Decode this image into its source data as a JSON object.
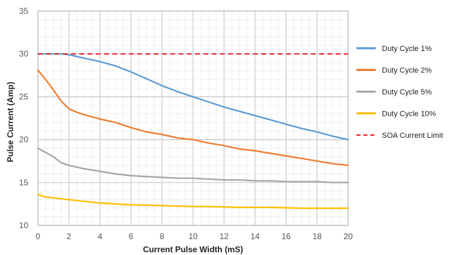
{
  "chart_data": {
    "type": "line",
    "xlabel": "Current Pulse Width (mS)",
    "ylabel": "Pulse Current (Amp)",
    "xlim": [
      0,
      20
    ],
    "ylim": [
      10,
      35
    ],
    "xticks": [
      0,
      2,
      4,
      6,
      8,
      10,
      12,
      14,
      16,
      18,
      20
    ],
    "yticks": [
      10,
      15,
      20,
      25,
      30,
      35
    ],
    "grid": true,
    "legend_position": "right",
    "series": [
      {
        "name": "Duty Cycle 1%",
        "color": "#5b9bd5",
        "dashed": false,
        "x": [
          0,
          0.5,
          1,
          1.5,
          2,
          2.5,
          3,
          4,
          5,
          6,
          7,
          8,
          9,
          10,
          11,
          12,
          13,
          14,
          15,
          16,
          17,
          18,
          19,
          20
        ],
        "y": [
          30,
          30,
          30,
          30,
          29.9,
          29.7,
          29.5,
          29.1,
          28.6,
          27.9,
          27.1,
          26.3,
          25.6,
          25.0,
          24.4,
          23.8,
          23.3,
          22.8,
          22.3,
          21.8,
          21.3,
          20.9,
          20.4,
          20.0
        ]
      },
      {
        "name": "Duty Cycle 2%",
        "color": "#ed7d31",
        "dashed": false,
        "x": [
          0,
          0.5,
          1,
          1.5,
          2,
          2.5,
          3,
          4,
          5,
          6,
          7,
          8,
          9,
          10,
          11,
          12,
          13,
          14,
          15,
          16,
          17,
          18,
          19,
          20
        ],
        "y": [
          28.1,
          27.0,
          25.8,
          24.5,
          23.6,
          23.2,
          22.9,
          22.4,
          22.0,
          21.4,
          20.9,
          20.6,
          20.2,
          20.0,
          19.6,
          19.3,
          18.9,
          18.7,
          18.4,
          18.1,
          17.8,
          17.5,
          17.2,
          17.0
        ]
      },
      {
        "name": "Duty Cycle 5%",
        "color": "#a5a5a5",
        "dashed": false,
        "x": [
          0,
          0.5,
          1,
          1.5,
          2,
          2.5,
          3,
          4,
          5,
          6,
          7,
          8,
          9,
          10,
          11,
          12,
          13,
          14,
          15,
          16,
          17,
          18,
          19,
          20
        ],
        "y": [
          19.0,
          18.5,
          18.0,
          17.3,
          17.0,
          16.8,
          16.6,
          16.3,
          16.0,
          15.8,
          15.7,
          15.6,
          15.5,
          15.5,
          15.4,
          15.3,
          15.3,
          15.2,
          15.2,
          15.1,
          15.1,
          15.1,
          15.0,
          15.0
        ]
      },
      {
        "name": "Duty Cycle 10%",
        "color": "#ffc000",
        "dashed": false,
        "x": [
          0,
          0.5,
          1,
          1.5,
          2,
          2.5,
          3,
          4,
          5,
          6,
          7,
          8,
          9,
          10,
          11,
          12,
          13,
          14,
          15,
          16,
          17,
          18,
          19,
          20
        ],
        "y": [
          13.6,
          13.3,
          13.2,
          13.1,
          13.0,
          12.9,
          12.8,
          12.6,
          12.5,
          12.4,
          12.35,
          12.3,
          12.25,
          12.2,
          12.2,
          12.15,
          12.1,
          12.1,
          12.1,
          12.05,
          12.0,
          12.0,
          12.0,
          12.0
        ]
      },
      {
        "name": "SOA Current Limit",
        "color": "#e8262a",
        "dashed": true,
        "x": [
          0,
          20
        ],
        "y": [
          30,
          30
        ]
      }
    ]
  }
}
